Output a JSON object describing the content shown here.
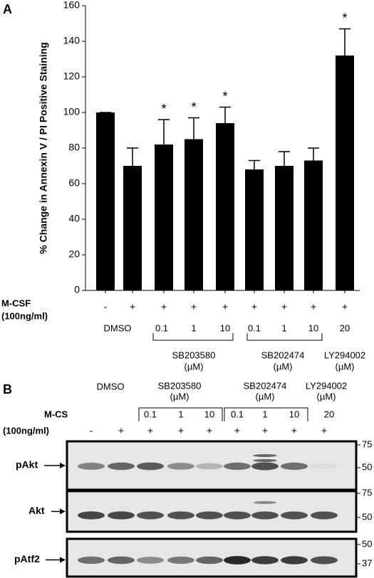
{
  "chart_data": {
    "type": "bar",
    "panel": "A",
    "ylabel": "% Change in Annexin V / PI Positive Staining",
    "categories": [
      null,
      null,
      null,
      null,
      null,
      null,
      null,
      null,
      null
    ],
    "values": [
      100,
      70,
      82,
      85,
      94,
      68,
      70,
      73,
      132
    ],
    "errors": [
      0,
      10,
      14,
      12,
      9,
      5,
      8,
      7,
      15
    ],
    "color": "#000000",
    "ylim": [
      0,
      160
    ],
    "yticks": [
      0,
      20,
      40,
      60,
      80,
      100,
      120,
      140,
      160
    ],
    "annotations": [
      {
        "category": 2,
        "text": "*"
      },
      {
        "category": 3,
        "text": "*"
      },
      {
        "category": 4,
        "text": "*"
      },
      {
        "category": 8,
        "text": "*"
      }
    ]
  },
  "conditions": {
    "mcsf_label": "M-CSF",
    "mcsf_unit": "(100ng/ml)",
    "mcsf": [
      "-",
      "+",
      "+",
      "+",
      "+",
      "+",
      "+",
      "+",
      "+"
    ],
    "treatments": [
      "DMSO",
      "0.1",
      "1",
      "10",
      "0.1",
      "1",
      "10",
      "20"
    ],
    "groups": [
      {
        "name": "SB203580",
        "unit": "(µM)"
      },
      {
        "name": "SB202474",
        "unit": "(µM)"
      },
      {
        "name": "LY294002",
        "unit": "(µM)"
      }
    ]
  },
  "panel_b": {
    "label": "B",
    "vehicle": "DMSO",
    "groups": [
      {
        "name": "SB203580",
        "unit": "(µM)"
      },
      {
        "name": "SB202474",
        "unit": "(µM)"
      },
      {
        "name": "LY294002",
        "unit": "(µM)"
      }
    ],
    "doses": [
      "0.1",
      "1",
      "10",
      "0.1",
      "1",
      "10",
      "20"
    ],
    "mcsf_label": "M-CS",
    "mcsf_unit": "(100ng/ml)",
    "mcsf": [
      "-",
      "+",
      "+",
      "+",
      "+",
      "+",
      "+",
      "+",
      "+"
    ],
    "blots": [
      {
        "name": "pAkt",
        "markers": [
          75,
          50
        ]
      },
      {
        "name": "Akt",
        "markers": [
          75,
          50
        ]
      },
      {
        "name": "pAtf2",
        "markers": [
          50,
          37
        ]
      }
    ]
  }
}
